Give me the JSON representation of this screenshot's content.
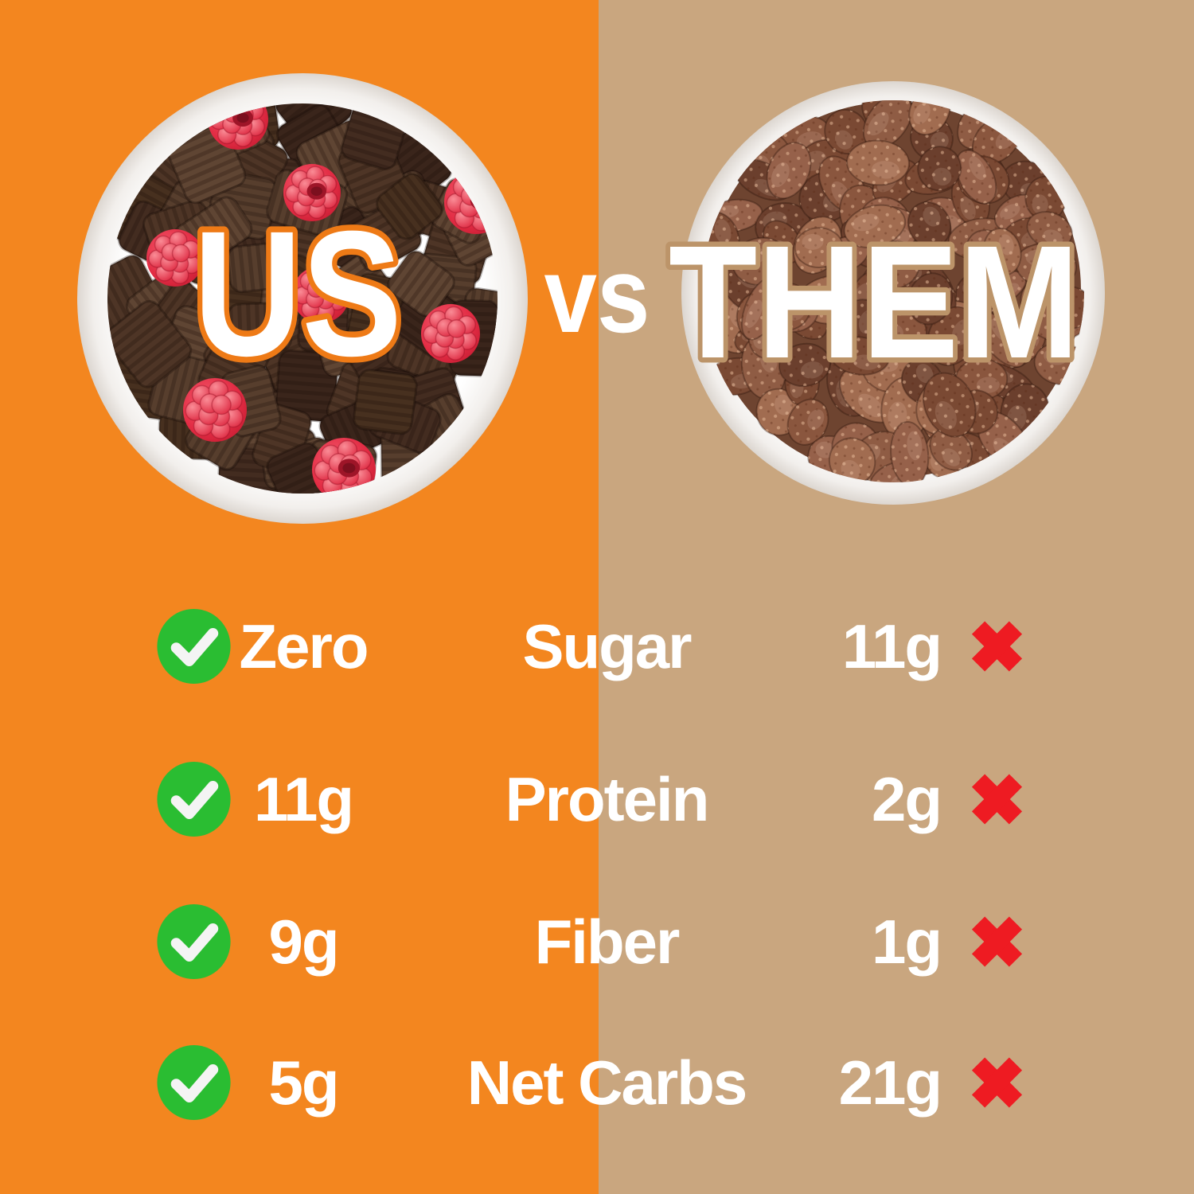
{
  "left_panel": {
    "title": "US",
    "bg_color": "#F3861F",
    "title_outline": "#EE7A16"
  },
  "right_panel": {
    "title": "THEM",
    "bg_color": "#C9A67F",
    "title_outline": "#BC9469"
  },
  "vs_label": "vs",
  "table": {
    "rows": [
      {
        "us": "Zero",
        "metric": "Sugar",
        "them": "11g"
      },
      {
        "us": "11g",
        "metric": "Protein",
        "them": "2g"
      },
      {
        "us": "9g",
        "metric": "Fiber",
        "them": "1g"
      },
      {
        "us": "5g",
        "metric": "Net Carbs",
        "them": "21g"
      }
    ]
  },
  "icons": {
    "check": {
      "name": "check-icon",
      "circle_color": "#2ABD32",
      "mark_color": "#F4F4F4"
    },
    "cross": {
      "name": "cross-icon",
      "color": "#EE1B22"
    }
  },
  "colors": {
    "title_fill": "#FFFFFF",
    "table_text": "#FFFFFF",
    "bowl": "#FFFFFF",
    "bowl_rim_shadow": "#DCD6D0",
    "milk": "#FFFFFF",
    "square_palette": [
      "#4E3526",
      "#432C20",
      "#573E2D",
      "#3A251B",
      "#5F4533",
      "#47301F"
    ],
    "flake_palette": [
      "#8A563E",
      "#7A4933",
      "#96614A",
      "#A16C50",
      "#6B3F2D",
      "#8F5C44"
    ],
    "flake_pile_base": "#6E4430",
    "raspberry_base": "#E8344A",
    "raspberry_bump": "#F26D7D",
    "raspberry_hole": "#9E1528"
  }
}
